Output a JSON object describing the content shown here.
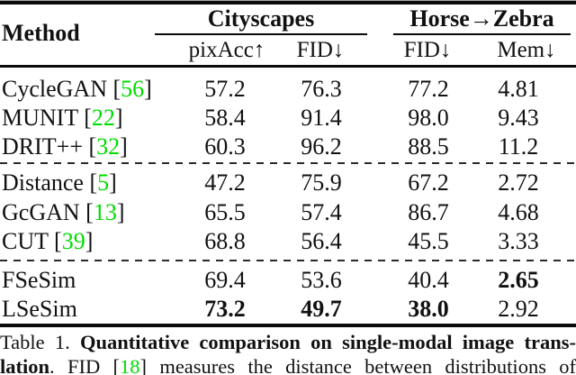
{
  "colors": {
    "citation_green": "#00dc00",
    "text": "#111111"
  },
  "table": {
    "method_header": "Method",
    "groups": {
      "g1": "Cityscapes",
      "g2": "Horse→Zebra"
    },
    "subheaders": {
      "pixacc": "pixAcc↑",
      "fid_cs": "FID↓",
      "fid_hz": "FID↓",
      "mem": "Mem↓"
    },
    "rows": [
      {
        "method": "CycleGAN",
        "open": " [",
        "cite": "56",
        "close": "]",
        "pixacc": "57.2",
        "fid_cs": "76.3",
        "fid_hz": "77.2",
        "mem": "4.81"
      },
      {
        "method": "MUNIT",
        "open": " [",
        "cite": "22",
        "close": "]",
        "pixacc": "58.4",
        "fid_cs": "91.4",
        "fid_hz": "98.0",
        "mem": "9.43"
      },
      {
        "method": "DRIT++",
        "open": " [",
        "cite": "32",
        "close": "]",
        "pixacc": "60.3",
        "fid_cs": "96.2",
        "fid_hz": "88.5",
        "mem": "11.2"
      },
      {
        "method": "Distance",
        "open": " [",
        "cite": "5",
        "close": "]",
        "pixacc": "47.2",
        "fid_cs": "75.9",
        "fid_hz": "67.2",
        "mem": "2.72"
      },
      {
        "method": "GcGAN",
        "open": " [",
        "cite": "13",
        "close": "]",
        "pixacc": "65.5",
        "fid_cs": "57.4",
        "fid_hz": "86.7",
        "mem": "4.68"
      },
      {
        "method": "CUT",
        "open": " [",
        "cite": "39",
        "close": "]",
        "pixacc": "68.8",
        "fid_cs": "56.4",
        "fid_hz": "45.5",
        "mem": "3.33"
      },
      {
        "method": "FSeSim",
        "open": "",
        "cite": "",
        "close": "",
        "pixacc": "69.4",
        "fid_cs": "53.6",
        "fid_hz": "40.4",
        "mem": "2.65"
      },
      {
        "method": "LSeSim",
        "open": "",
        "cite": "",
        "close": "",
        "pixacc": "73.2",
        "fid_cs": "49.7",
        "fid_hz": "38.0",
        "mem": "2.92"
      }
    ]
  },
  "caption": {
    "prefix": "Table 1. ",
    "bold_line1": "Quantitative comparison on single-modal image trans-",
    "bold_line2": "lation",
    "mid": ". FID [",
    "cite": "18",
    "suffix": "] measures the distance between distributions of"
  }
}
